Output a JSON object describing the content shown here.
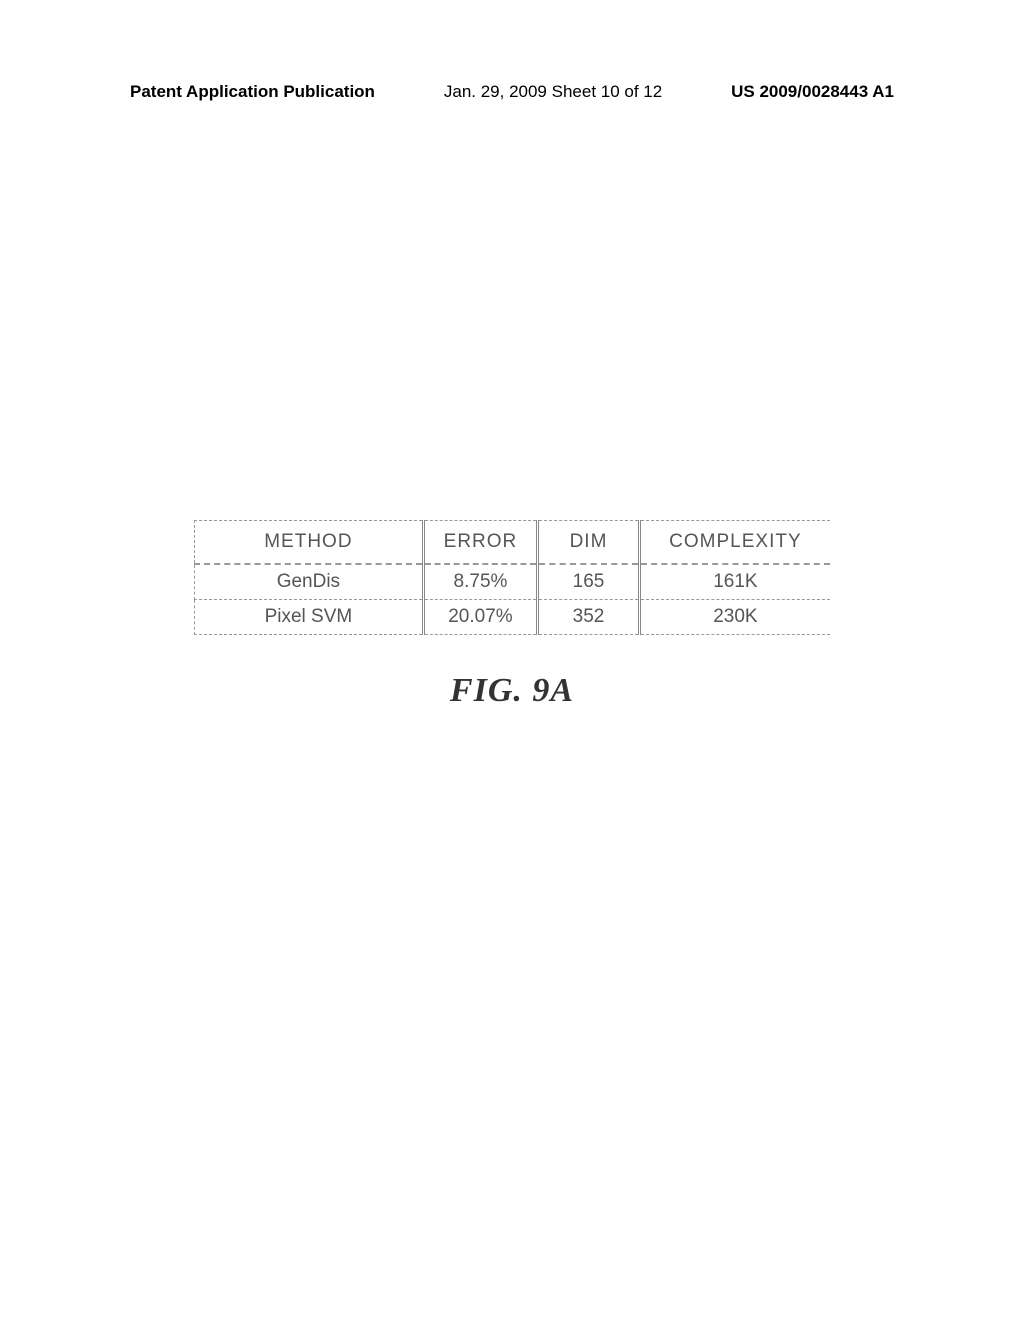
{
  "header": {
    "publication": "Patent Application Publication",
    "date_sheet": "Jan. 29, 2009  Sheet 10 of 12",
    "patent_number": "US 2009/0028443 A1"
  },
  "table": {
    "columns": [
      "METHOD",
      "ERROR",
      "DIM",
      "COMPLEXITY"
    ],
    "rows": [
      [
        "GenDis",
        "8.75%",
        "165",
        "161K"
      ],
      [
        "Pixel SVM",
        "20.07%",
        "352",
        "230K"
      ]
    ],
    "header_color": "#555555",
    "cell_color": "#555555",
    "header_fontsize": 19,
    "cell_fontsize": 19,
    "border_color": "#999999"
  },
  "caption": "FIG. 9A"
}
